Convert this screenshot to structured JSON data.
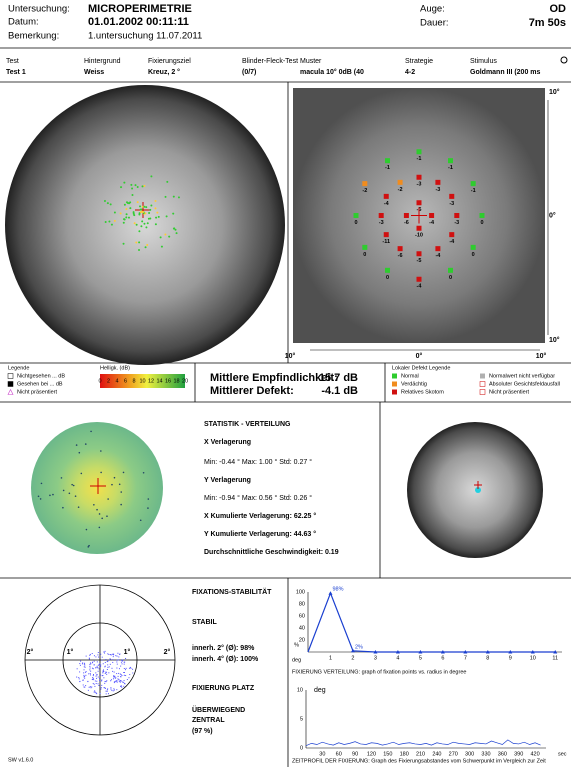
{
  "header": {
    "exam_label": "Untersuchung:",
    "exam": "MICROPERIMETRIE",
    "date_label": "Datum:",
    "date": "01.01.2002   00:11:11",
    "remark_label": "Bemerkung:",
    "remark": "1.untersuchung 11.07.2011",
    "eye_label": "Auge:",
    "eye": "OD",
    "duration_label": "Dauer:",
    "duration": "7m 50s"
  },
  "settings": {
    "headers": [
      "Test",
      "Hintergrund",
      "Fixierungsziel",
      "Blinder-Fleck-Test",
      "Muster",
      "Strategie",
      "Stimulus"
    ],
    "values": [
      "Test 1",
      "Weiss",
      "Kreuz, 2 °",
      "(0/7)",
      "macula 10° 0dB (40",
      "4-2",
      "Goldmann III  (200 ms"
    ]
  },
  "stimulus_map": {
    "x_labels": [
      "10°",
      "0°",
      "10°"
    ],
    "y_labels": [
      "10°",
      "0°",
      "10°"
    ],
    "xlim": [
      -10,
      10
    ],
    "ylim": [
      -10,
      10
    ],
    "points": [
      {
        "x": 5,
        "y": 0,
        "value": 0,
        "color": "#2ecc2e"
      },
      {
        "x": 4.3,
        "y": 2.5,
        "value": -1,
        "color": "#2ecc2e"
      },
      {
        "x": 2.5,
        "y": 4.3,
        "value": -1,
        "color": "#2ecc2e"
      },
      {
        "x": 0,
        "y": 5,
        "value": -1,
        "color": "#2ecc2e"
      },
      {
        "x": -2.5,
        "y": 4.3,
        "value": -1,
        "color": "#2ecc2e"
      },
      {
        "x": -4.3,
        "y": 2.5,
        "value": -2,
        "color": "#f08c1e"
      },
      {
        "x": -5,
        "y": 0,
        "value": 0,
        "color": "#2ecc2e"
      },
      {
        "x": -4.3,
        "y": -2.5,
        "value": 0,
        "color": "#2ecc2e"
      },
      {
        "x": -2.5,
        "y": -4.3,
        "value": 0,
        "color": "#2ecc2e"
      },
      {
        "x": 0,
        "y": -5,
        "value": -4,
        "color": "#d01010"
      },
      {
        "x": 2.5,
        "y": -4.3,
        "value": 0,
        "color": "#2ecc2e"
      },
      {
        "x": 4.3,
        "y": -2.5,
        "value": 0,
        "color": "#2ecc2e"
      },
      {
        "x": 3,
        "y": 0,
        "value": -3,
        "color": "#d01010"
      },
      {
        "x": 2.6,
        "y": 1.5,
        "value": -3,
        "color": "#d01010"
      },
      {
        "x": 1.5,
        "y": 2.6,
        "value": -3,
        "color": "#d01010"
      },
      {
        "x": 0,
        "y": 3,
        "value": -3,
        "color": "#d01010"
      },
      {
        "x": -1.5,
        "y": 2.6,
        "value": -2,
        "color": "#f08c1e"
      },
      {
        "x": -2.6,
        "y": 1.5,
        "value": -4,
        "color": "#d01010"
      },
      {
        "x": -3,
        "y": 0,
        "value": -3,
        "color": "#d01010"
      },
      {
        "x": -2.6,
        "y": -1.5,
        "value": -11,
        "color": "#d01010"
      },
      {
        "x": -1.5,
        "y": -2.6,
        "value": -6,
        "color": "#d01010"
      },
      {
        "x": 0,
        "y": -3,
        "value": -5,
        "color": "#d01010"
      },
      {
        "x": 1.5,
        "y": -2.6,
        "value": -4,
        "color": "#d01010"
      },
      {
        "x": 2.6,
        "y": -1.5,
        "value": -4,
        "color": "#d01010"
      },
      {
        "x": 1,
        "y": 0,
        "value": -4,
        "color": "#d01010"
      },
      {
        "x": 0,
        "y": 1,
        "value": -5,
        "color": "#d01010"
      },
      {
        "x": -1,
        "y": 0,
        "value": -6,
        "color": "#d01010"
      },
      {
        "x": 0,
        "y": -1,
        "value": -10,
        "color": "#d01010"
      }
    ]
  },
  "legend": {
    "left_title": "Legende",
    "left_items": [
      "Nichtgesehen ... dB",
      "Gesehen bei ... dB",
      "Nicht präsentiert"
    ],
    "brightness_title": "Helligk. (dB)",
    "brightness_ticks": [
      0,
      2,
      4,
      6,
      8,
      10,
      12,
      14,
      16,
      18,
      20
    ],
    "brightness_lim": [
      0,
      20
    ],
    "right_title": "Lokaler Defekt Legende",
    "right_items": [
      {
        "label": "Normal",
        "color": "#2ecc2e"
      },
      {
        "label": "Verdächtig",
        "color": "#f08c1e"
      },
      {
        "label": "Relatives Skotom",
        "color": "#d01010"
      },
      {
        "label": "Normalwert nicht verfügbar",
        "color": "#b0b0b0"
      },
      {
        "label": "Absoluter Gesichtsfeldausfall",
        "color": "#ffffff"
      },
      {
        "label": "Nicht präsentiert",
        "color": "#ffffff"
      }
    ]
  },
  "summary": {
    "mean_sensitivity_label": "Mittlere Empfindlichkeit:",
    "mean_sensitivity": "15.7 dB",
    "mean_defect_label": "Mittlerer Defekt:",
    "mean_defect": "-4.1 dB"
  },
  "statistics": {
    "title": "STATISTIK - VERTEILUNG",
    "x_title": "X Verlagerung",
    "x_line": "Min: -0.44 °   Max: 1.00 °   Std: 0.27 °",
    "y_title": "Y Verlagerung",
    "y_line": "Min: -0.94 °   Max: 0.56 °   Std: 0.26 °",
    "x_cumulative": "X Kumulierte Verlagerung:   62.25 °",
    "y_cumulative": "Y Kumulierte Verlagerung:   44.63 °",
    "speed": "Durchschnittliche Geschwindigkeit:   0.19"
  },
  "fixation": {
    "title": "FIXATIONS-STABILITÄT",
    "stability": "STABIL",
    "within2": "innerh. 2° (Ø): 98%",
    "within4": "innerh. 4° (Ø): 100%",
    "place_title": "FIXIERUNG PLATZ",
    "place_1": "ÜBERWIEGEND",
    "place_2": "ZENTRAL",
    "place_3": "(97 %)",
    "ring_labels": [
      "2°",
      "1°",
      "1°",
      "2°"
    ]
  },
  "distribution_chart": {
    "type": "line",
    "color": "#1a3fd0",
    "x": [
      0,
      1,
      2,
      3,
      4,
      5,
      6,
      7,
      8,
      9,
      10,
      11
    ],
    "values": [
      0,
      98,
      2,
      0,
      0,
      0,
      0,
      0,
      0,
      0,
      0,
      0
    ],
    "value_labels": [
      null,
      "98%",
      "2%",
      null,
      null,
      null,
      null,
      null,
      null,
      null,
      null,
      null
    ],
    "xlim": [
      0,
      11.3
    ],
    "xticks": [
      1,
      2,
      3,
      4,
      5,
      6,
      7,
      8,
      9,
      10,
      11
    ],
    "ylim": [
      0,
      100
    ],
    "yticks": [
      20,
      40,
      60,
      80,
      100
    ],
    "x_label": "deg",
    "y_label": "%",
    "caption": "FIXIERUNG VERTEILUNG: graph of fixation points vs. radius in degree"
  },
  "time_chart": {
    "type": "line",
    "color": "#1a3fd0",
    "x": [
      0,
      10,
      20,
      30,
      40,
      50,
      60,
      70,
      80,
      90,
      100,
      110,
      120,
      130,
      140,
      150,
      160,
      170,
      180,
      190,
      200,
      210,
      220,
      230,
      240,
      250,
      260,
      270,
      280,
      290,
      300,
      310,
      320,
      330,
      340,
      350,
      360,
      370,
      380,
      390,
      400,
      410,
      420,
      430
    ],
    "values": [
      0.4,
      0.8,
      0.6,
      1.0,
      0.7,
      0.5,
      0.9,
      0.6,
      0.8,
      1.1,
      0.7,
      0.6,
      0.9,
      0.8,
      0.5,
      0.7,
      1.0,
      0.6,
      0.8,
      0.9,
      0.7,
      0.6,
      0.8,
      0.5,
      0.9,
      0.7,
      0.6,
      1.0,
      0.8,
      0.7,
      0.6,
      0.9,
      0.8,
      0.7,
      1.2,
      0.9,
      0.6,
      1.4,
      0.8,
      0.7,
      1.0,
      0.6,
      0.9,
      0.5
    ],
    "xlim": [
      0,
      440
    ],
    "xticks": [
      30,
      60,
      90,
      120,
      150,
      180,
      210,
      240,
      270,
      300,
      330,
      360,
      390,
      420
    ],
    "ylim": [
      0,
      10
    ],
    "yticks": [
      0,
      5,
      10
    ],
    "x_label": "sec",
    "y_label": "deg",
    "caption": "ZEITPROFIL DER FIXIERUNG: Graph des Fixierungsabstandes vom Schwerpunkt im Vergleich zur Zeit"
  },
  "version": "SW v1.6.0"
}
